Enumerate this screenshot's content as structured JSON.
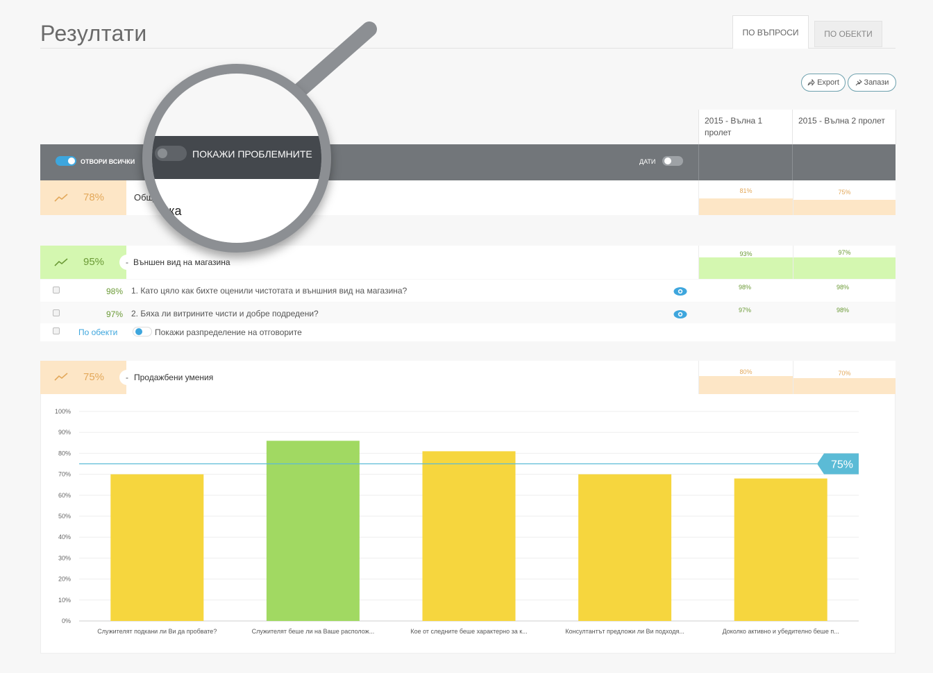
{
  "header": {
    "title": "Резултати",
    "tabs": [
      {
        "label": "ПО ВЪПРОСИ",
        "active": true
      },
      {
        "label": "ПО ОБЕКТИ",
        "active": false
      }
    ],
    "export_label": "Export",
    "save_label": "Запази"
  },
  "waves": [
    "2015 - Вълна 1 пролет",
    "2015 - Вълна 2 пролет"
  ],
  "toolbar": {
    "open_all_label": "ОТВОРИ ВСИЧКИ",
    "open_all_on": true,
    "show_problems_label": "ПОКАЖИ ПРОБЛЕМНИТЕ",
    "show_problems_on": false,
    "dates_label": "ДАТИ",
    "dates_on": false
  },
  "overall": {
    "pct": "78%",
    "label": "Обща оценка",
    "wave_values": [
      "81%",
      "75%"
    ],
    "color": "#fde6c6",
    "text_color": "#e3a85a"
  },
  "section_appearance": {
    "pct": "95%",
    "label": "Външен вид на магазина",
    "wave_values": [
      "93%",
      "97%"
    ],
    "color": "#d4f7b0",
    "text_color": "#6b9a36",
    "questions": [
      {
        "pct": "98%",
        "text": "1. Като цяло как бихте оценили чистотата и външния вид на магазина?",
        "wave_values": [
          "98%",
          "98%"
        ]
      },
      {
        "pct": "97%",
        "text": "2. Бяха ли витрините чисти и добре подредени?",
        "wave_values": [
          "97%",
          "98%"
        ]
      }
    ],
    "by_objects_link": "По обекти",
    "distribution_label": "Покажи разпределение на отговорите"
  },
  "section_sales": {
    "pct": "75%",
    "label": "Продажбени умения",
    "wave_values": [
      "80%",
      "70%"
    ],
    "color": "#fde6c6",
    "text_color": "#e3a85a"
  },
  "icons": {
    "trend": "trend-line-icon",
    "eye": "eye-icon",
    "share": "share-arrow-icon",
    "pin": "pin-icon",
    "collapse": "minus-icon"
  },
  "chart_data": {
    "type": "bar",
    "categories": [
      "Служителят подкани ли Ви да пробвате?",
      "Служителят беше ли на Ваше располож...",
      "Кое от следните беше характерно за к...",
      "Консултантът предложи ли Ви подходя...",
      "Доколко активно и убедително беше п..."
    ],
    "values": [
      70,
      86,
      81,
      70,
      68
    ],
    "bar_colors": [
      "#f6d63e",
      "#a1d962",
      "#f6d63e",
      "#f6d63e",
      "#f6d63e"
    ],
    "reference_line": {
      "value": 75,
      "label": "75%",
      "color": "#5bbbd6"
    },
    "ylim": [
      0,
      100
    ],
    "yticks": [
      "0%",
      "10%",
      "20%",
      "30%",
      "40%",
      "50%",
      "60%",
      "70%",
      "80%",
      "90%",
      "100%"
    ],
    "grid": true
  }
}
